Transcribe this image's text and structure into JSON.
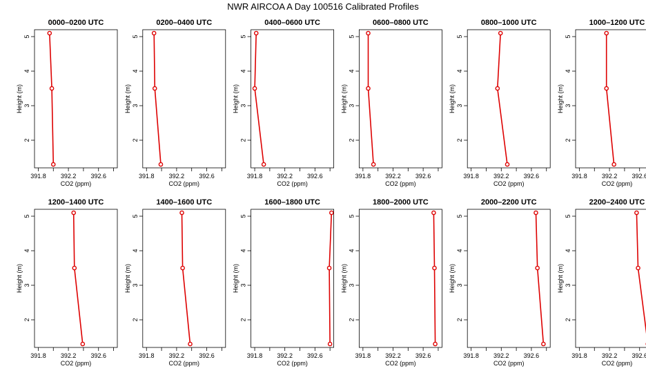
{
  "title": "NWR AIRCOA A  Day 100516  Calibrated Profiles",
  "colors": {
    "line": "#dd0000",
    "axis": "#000000",
    "background": "#ffffff"
  },
  "chart_data": {
    "type": "line",
    "xlabel": "CO2 (ppm)",
    "ylabel": "Height (m)",
    "xlim": [
      391.75,
      392.85
    ],
    "ylim": [
      1.2,
      5.2
    ],
    "xticks": [
      391.8,
      392.2,
      392.6
    ],
    "xtick_labels": [
      "391.8",
      "392.2",
      "392.6"
    ],
    "yticks": [
      2,
      3,
      4,
      5
    ],
    "ytick_labels": [
      "2",
      "3",
      "4",
      "5"
    ],
    "heights": [
      5.1,
      3.5,
      1.3
    ],
    "grid": false,
    "layout": "2 rows x 6 columns",
    "panels": [
      {
        "title": "0000–0200 UTC",
        "co2": [
          391.95,
          391.98,
          392.0
        ]
      },
      {
        "title": "0200–0400 UTC",
        "co2": [
          391.9,
          391.91,
          391.99
        ]
      },
      {
        "title": "0400–0600 UTC",
        "co2": [
          391.82,
          391.8,
          391.92
        ]
      },
      {
        "title": "0600–0800 UTC",
        "co2": [
          391.87,
          391.87,
          391.94
        ]
      },
      {
        "title": "0800–1000 UTC",
        "co2": [
          392.19,
          392.15,
          392.28
        ]
      },
      {
        "title": "1000–1200 UTC",
        "co2": [
          392.16,
          392.16,
          392.26
        ]
      },
      {
        "title": "1200–1400 UTC",
        "co2": [
          392.27,
          392.28,
          392.39
        ]
      },
      {
        "title": "1400–1600 UTC",
        "co2": [
          392.27,
          392.28,
          392.38
        ]
      },
      {
        "title": "1600–1800 UTC",
        "co2": [
          392.82,
          392.79,
          392.8
        ]
      },
      {
        "title": "1800–2000 UTC",
        "co2": [
          392.74,
          392.75,
          392.76
        ]
      },
      {
        "title": "2000–2200 UTC",
        "co2": [
          392.66,
          392.68,
          392.76
        ]
      },
      {
        "title": "2200–2400 UTC",
        "co2": [
          392.56,
          392.58,
          392.71
        ]
      }
    ]
  }
}
